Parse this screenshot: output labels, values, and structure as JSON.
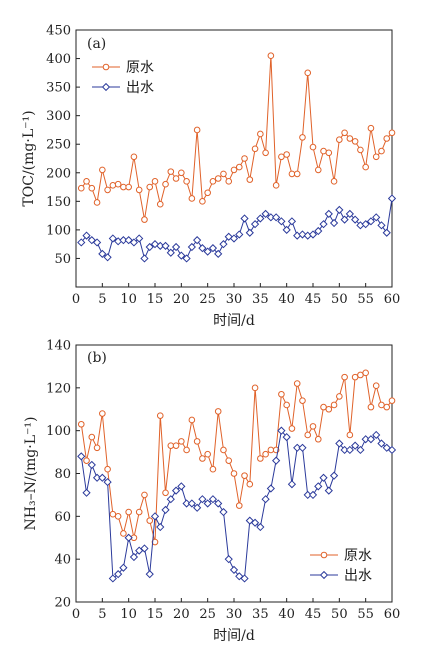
{
  "chart_data": [
    {
      "type": "line",
      "panel_label": "(a)",
      "xlabel": "时间/d",
      "ylabel": "TOC/(mg·L⁻¹)",
      "xlim": [
        0,
        60
      ],
      "ylim": [
        0,
        450
      ],
      "xticks": [
        0,
        5,
        10,
        15,
        20,
        25,
        30,
        35,
        40,
        45,
        50,
        55,
        60
      ],
      "yticks": [
        50,
        100,
        150,
        200,
        250,
        300,
        350,
        400,
        450
      ],
      "grid": false,
      "legend_position": "top-left",
      "series": [
        {
          "name": "原水",
          "color": "#e0622a",
          "marker": "circle",
          "x": [
            1,
            2,
            3,
            4,
            5,
            6,
            7,
            8,
            9,
            10,
            11,
            12,
            13,
            14,
            15,
            16,
            17,
            18,
            19,
            20,
            21,
            22,
            23,
            24,
            25,
            26,
            27,
            28,
            29,
            30,
            31,
            32,
            33,
            34,
            35,
            36,
            37,
            38,
            39,
            40,
            41,
            42,
            43,
            44,
            45,
            46,
            47,
            48,
            49,
            50,
            51,
            52,
            53,
            54,
            55,
            56,
            57,
            58,
            59,
            60
          ],
          "values": [
            173,
            185,
            173,
            148,
            205,
            170,
            178,
            180,
            175,
            175,
            228,
            170,
            118,
            175,
            185,
            145,
            180,
            202,
            190,
            200,
            185,
            155,
            275,
            150,
            165,
            185,
            190,
            198,
            185,
            205,
            210,
            225,
            188,
            242,
            268,
            235,
            405,
            178,
            228,
            232,
            198,
            198,
            262,
            375,
            245,
            205,
            238,
            235,
            185,
            258,
            270,
            260,
            255,
            240,
            210,
            278,
            228,
            238,
            260,
            270
          ]
        },
        {
          "name": "出水",
          "color": "#2b3a9b",
          "marker": "diamond",
          "x": [
            1,
            2,
            3,
            4,
            5,
            6,
            7,
            8,
            9,
            10,
            11,
            12,
            13,
            14,
            15,
            16,
            17,
            18,
            19,
            20,
            21,
            22,
            23,
            24,
            25,
            26,
            27,
            28,
            29,
            30,
            31,
            32,
            33,
            34,
            35,
            36,
            37,
            38,
            39,
            40,
            41,
            42,
            43,
            44,
            45,
            46,
            47,
            48,
            49,
            50,
            51,
            52,
            53,
            54,
            55,
            56,
            57,
            58,
            59,
            60
          ],
          "values": [
            78,
            90,
            82,
            78,
            58,
            52,
            85,
            80,
            82,
            82,
            78,
            85,
            50,
            70,
            75,
            72,
            72,
            60,
            70,
            55,
            50,
            70,
            82,
            68,
            62,
            68,
            58,
            75,
            88,
            85,
            92,
            120,
            95,
            110,
            120,
            128,
            122,
            122,
            115,
            100,
            115,
            90,
            92,
            90,
            92,
            98,
            110,
            128,
            112,
            135,
            118,
            128,
            118,
            108,
            110,
            115,
            122,
            108,
            95,
            155
          ]
        }
      ]
    },
    {
      "type": "line",
      "panel_label": "(b)",
      "xlabel": "时间/d",
      "ylabel": "NH₃–N/(mg·L⁻¹)",
      "xlim": [
        0,
        60
      ],
      "ylim": [
        20,
        140
      ],
      "xticks": [
        0,
        5,
        10,
        15,
        20,
        25,
        30,
        35,
        40,
        45,
        50,
        55,
        60
      ],
      "yticks": [
        20,
        40,
        60,
        80,
        100,
        120,
        140
      ],
      "grid": false,
      "legend_position": "bottom-right",
      "series": [
        {
          "name": "原水",
          "color": "#e0622a",
          "marker": "circle",
          "x": [
            1,
            2,
            3,
            4,
            5,
            6,
            7,
            8,
            9,
            10,
            11,
            12,
            13,
            14,
            15,
            16,
            17,
            18,
            19,
            20,
            21,
            22,
            23,
            24,
            25,
            26,
            27,
            28,
            29,
            30,
            31,
            32,
            33,
            34,
            35,
            36,
            37,
            38,
            39,
            40,
            41,
            42,
            43,
            44,
            45,
            46,
            47,
            48,
            49,
            50,
            51,
            52,
            53,
            54,
            55,
            56,
            57,
            58,
            59,
            60
          ],
          "values": [
            103,
            86,
            97,
            92,
            108,
            82,
            61,
            60,
            52,
            62,
            50,
            62,
            70,
            58,
            48,
            107,
            71,
            93,
            93,
            95,
            91,
            105,
            95,
            87,
            89,
            82,
            109,
            91,
            86,
            80,
            65,
            79,
            75,
            120,
            87,
            89,
            91,
            91,
            117,
            112,
            101,
            122,
            114,
            98,
            102,
            96,
            111,
            110,
            112,
            116,
            125,
            98,
            125,
            126,
            127,
            111,
            121,
            112,
            111,
            114
          ]
        },
        {
          "name": "出水",
          "color": "#2b3a9b",
          "marker": "diamond",
          "x": [
            1,
            2,
            3,
            4,
            5,
            6,
            7,
            8,
            9,
            10,
            11,
            12,
            13,
            14,
            15,
            16,
            17,
            18,
            19,
            20,
            21,
            22,
            23,
            24,
            25,
            26,
            27,
            28,
            29,
            30,
            31,
            32,
            33,
            34,
            35,
            36,
            37,
            38,
            39,
            40,
            41,
            42,
            43,
            44,
            45,
            46,
            47,
            48,
            49,
            50,
            51,
            52,
            53,
            54,
            55,
            56,
            57,
            58,
            59,
            60
          ],
          "values": [
            88,
            71,
            84,
            78,
            78,
            76,
            31,
            33,
            36,
            50,
            41,
            44,
            45,
            33,
            60,
            55,
            63,
            68,
            72,
            74,
            66,
            66,
            64,
            68,
            66,
            68,
            66,
            62,
            40,
            35,
            32,
            31,
            58,
            57,
            55,
            68,
            73,
            86,
            100,
            97,
            75,
            92,
            92,
            70,
            70,
            74,
            78,
            72,
            79,
            94,
            91,
            91,
            93,
            91,
            96,
            96,
            98,
            94,
            92,
            91
          ]
        }
      ]
    }
  ]
}
